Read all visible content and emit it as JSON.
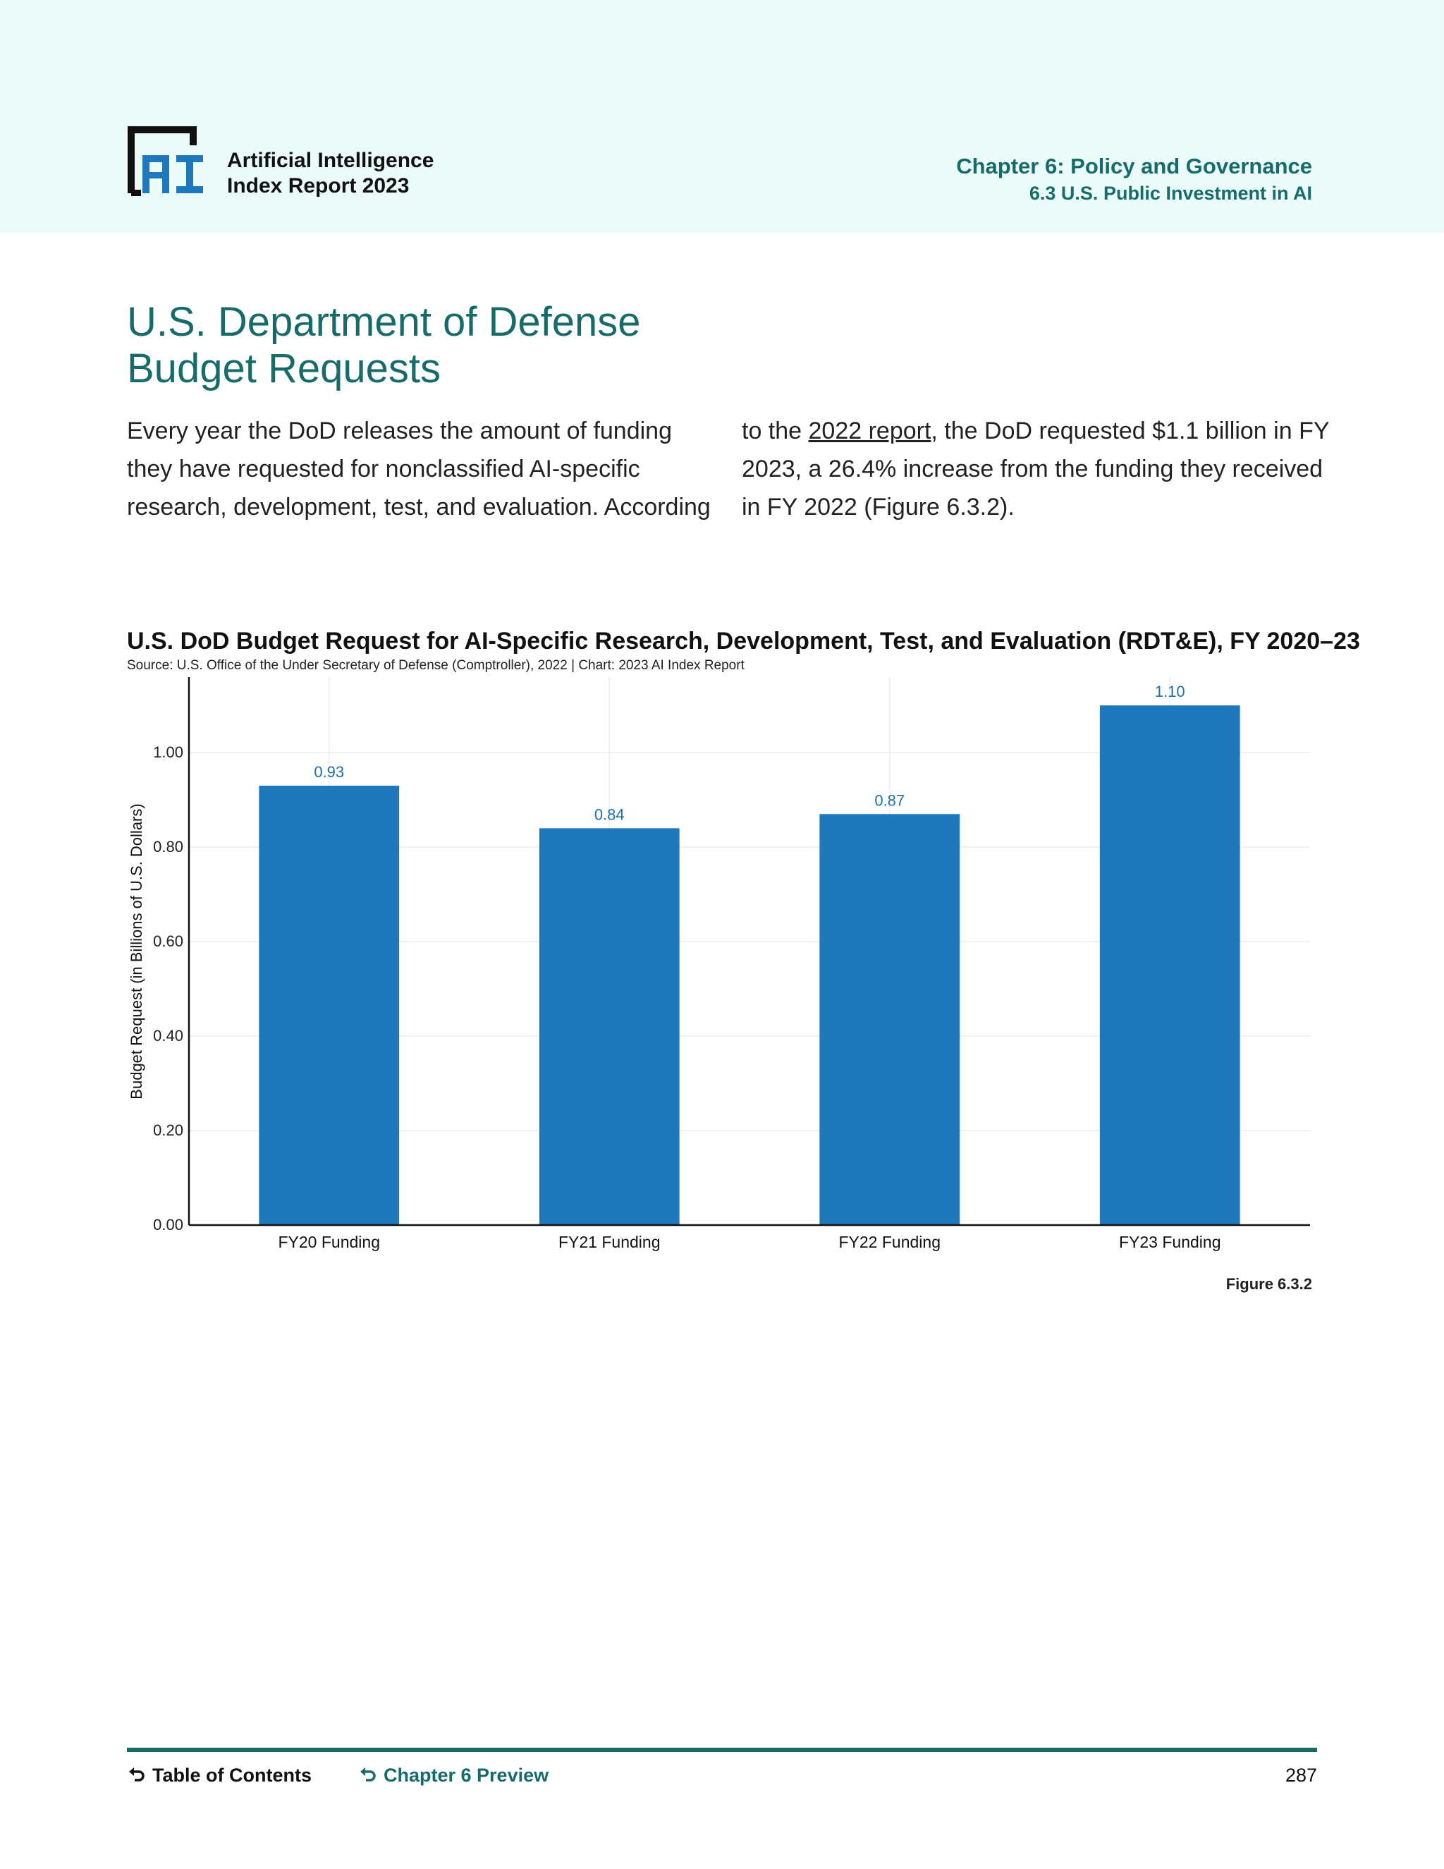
{
  "header": {
    "logo_line1": "Artificial Intelligence",
    "logo_line2": "Index Report 2023",
    "chapter_title": "Chapter 6: Policy and Governance",
    "section_title": "6.3 U.S. Public Investment in AI"
  },
  "page_title_lines": [
    "U.S. Department of Defense",
    "Budget Requests"
  ],
  "body": {
    "left_lines": [
      "Every year the DoD releases the amount of funding",
      "they have requested for nonclassified AI-specific",
      "research, development, test, and evaluation. According"
    ],
    "right_line1_pre": "to the ",
    "right_link": "2022 report",
    "right_line1_post": ", the DoD requested $1.1 billion in FY",
    "right_line2": "2023, a 26.4% increase from the funding they received",
    "right_line3": "in FY 2022 (Figure 6.3.2)."
  },
  "chart_data": {
    "type": "bar",
    "title": "U.S. DoD Budget Request for AI-Specific Research, Development, Test, and Evaluation (RDT&E), FY 2020–23",
    "source": "Source: U.S. Office of the Under Secretary of Defense (Comptroller), 2022 | Chart: 2023 AI Index Report",
    "categories": [
      "FY20 Funding",
      "FY21 Funding",
      "FY22 Funding",
      "FY23 Funding"
    ],
    "values": [
      0.93,
      0.84,
      0.87,
      1.1
    ],
    "value_labels": [
      "0.93",
      "0.84",
      "0.87",
      "1.10"
    ],
    "xlabel": "",
    "ylabel": "Budget Request (in Billions of U.S. Dollars)",
    "ylim": [
      0,
      1.16
    ],
    "yticks": [
      0,
      0.2,
      0.4,
      0.6,
      0.8,
      1.0
    ],
    "ytick_labels": [
      "0.00",
      "0.20",
      "0.40",
      "0.60",
      "0.80",
      "1.00"
    ],
    "grid": true,
    "bar_color": "#1f77bc",
    "label_color": "#1f6fa8",
    "figure_label": "Figure 6.3.2"
  },
  "footer": {
    "toc": "Table of Contents",
    "chapter_preview": "Chapter 6 Preview",
    "page_number": "287"
  },
  "colors": {
    "accent": "#176b6b",
    "header_bg": "#ebfbfa",
    "logo_blue": "#1f77bc"
  }
}
